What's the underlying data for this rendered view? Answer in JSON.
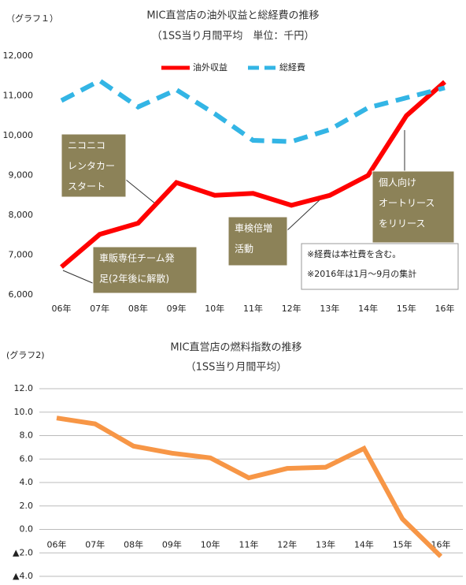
{
  "chart_data": [
    {
      "type": "line",
      "label": "（グラフ１）",
      "title": "MIC直営店の油外収益と総経費の推移",
      "subtitle": "（1SS当り月間平均　単位：千円）",
      "categories": [
        "06年",
        "07年",
        "08年",
        "09年",
        "10年",
        "11年",
        "12年",
        "13年",
        "14年",
        "15年",
        "16年"
      ],
      "series": [
        {
          "name": "油外収益",
          "color": "#ff0000",
          "dashed": false,
          "values": [
            6700,
            7520,
            7800,
            8820,
            8500,
            8550,
            8250,
            8500,
            9000,
            10500,
            11350
          ]
        },
        {
          "name": "総経費",
          "color": "#33b5e5",
          "dashed": true,
          "values": [
            10880,
            11380,
            10720,
            11150,
            10550,
            9880,
            9850,
            10150,
            10700,
            10950,
            11200
          ]
        }
      ],
      "ylim": [
        6000,
        12000
      ],
      "yticks": [
        {
          "value": 6000,
          "label": "6,000"
        },
        {
          "value": 7000,
          "label": "7,000"
        },
        {
          "value": 8000,
          "label": "8,000"
        },
        {
          "value": 9000,
          "label": "9,000"
        },
        {
          "value": 10000,
          "label": "10,000"
        },
        {
          "value": 11000,
          "label": "11,000"
        },
        {
          "value": 12000,
          "label": "12,000"
        }
      ],
      "grid": false,
      "legend": "top",
      "annotations": [
        {
          "lines": [
            "ニコニコ",
            "レンタカー",
            "スタート"
          ]
        },
        {
          "lines": [
            "車販専任チーム発",
            "足(2年後に解散)"
          ]
        },
        {
          "lines": [
            "車検倍増",
            "活動"
          ]
        },
        {
          "lines": [
            "個人向け",
            "オートリース",
            "をリリース"
          ]
        }
      ],
      "notes": [
        "※経費は本社費を含む。",
        "※2016年は1月～9月の集計"
      ]
    },
    {
      "type": "line",
      "label": "(グラフ2)",
      "title": "MIC直営店の燃料指数の推移",
      "subtitle": "（1SS当り月間平均）",
      "categories": [
        "06年",
        "07年",
        "08年",
        "09年",
        "10年",
        "11年",
        "12年",
        "13年",
        "14年",
        "15年",
        "16年"
      ],
      "series": [
        {
          "name": "燃料指数",
          "color": "#f79646",
          "dashed": false,
          "values": [
            9.5,
            9.0,
            7.1,
            6.5,
            6.1,
            4.4,
            5.2,
            5.3,
            6.9,
            0.9,
            -2.3
          ]
        }
      ],
      "ylim": [
        -4,
        12
      ],
      "yticks": [
        {
          "value": -4,
          "label": "▲4.0"
        },
        {
          "value": -2,
          "label": "▲2.0"
        },
        {
          "value": 0,
          "label": "0.0"
        },
        {
          "value": 2,
          "label": "2.0"
        },
        {
          "value": 4,
          "label": "4.0"
        },
        {
          "value": 6,
          "label": "6.0"
        },
        {
          "value": 8,
          "label": "8.0"
        },
        {
          "value": 10,
          "label": "10.0"
        },
        {
          "value": 12,
          "label": "12.0"
        }
      ],
      "grid": true
    }
  ]
}
